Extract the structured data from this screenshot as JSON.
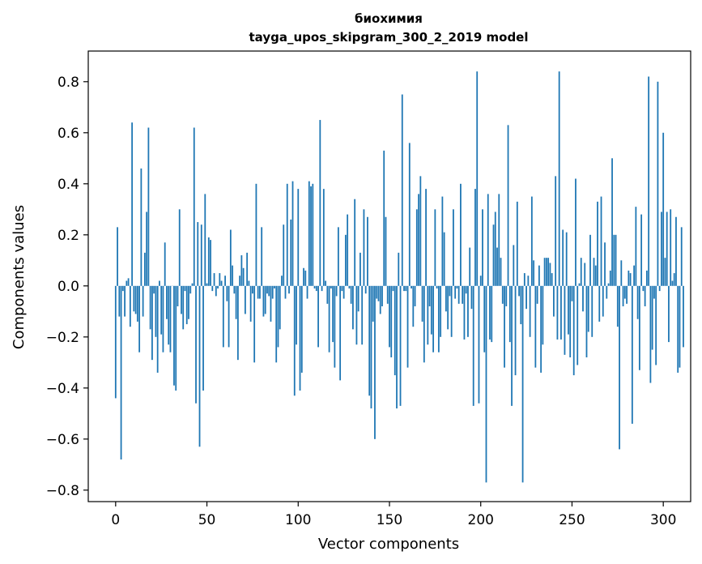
{
  "chart_data": {
    "type": "bar",
    "title": "биохимия",
    "subtitle": "tayga_upos_skipgram_300_2_2019 model",
    "xlabel": "Vector components",
    "ylabel": "Components values",
    "xlim": [
      -15,
      315
    ],
    "ylim": [
      -0.845,
      0.92
    ],
    "xticks": [
      0,
      50,
      100,
      150,
      200,
      250,
      300
    ],
    "xtick_labels": [
      "0",
      "50",
      "100",
      "150",
      "200",
      "250",
      "300"
    ],
    "yticks": [
      -0.8,
      -0.6,
      -0.4,
      -0.2,
      0.0,
      0.2,
      0.4,
      0.6,
      0.8
    ],
    "ytick_labels": [
      "−0.8",
      "−0.6",
      "−0.4",
      "−0.2",
      "0.0",
      "0.2",
      "0.4",
      "0.6",
      "0.8"
    ],
    "bar_color": "#1f77b4",
    "grid": false,
    "values": [
      -0.44,
      0.23,
      -0.12,
      -0.68,
      -0.02,
      -0.12,
      0.02,
      0.03,
      -0.16,
      0.64,
      -0.1,
      -0.11,
      -0.14,
      -0.26,
      0.46,
      -0.12,
      0.13,
      0.29,
      0.62,
      -0.17,
      -0.29,
      -0.03,
      -0.2,
      -0.34,
      0.02,
      -0.19,
      -0.26,
      0.17,
      -0.13,
      -0.23,
      -0.26,
      0.0,
      -0.39,
      -0.41,
      -0.08,
      0.3,
      -0.11,
      -0.17,
      -0.02,
      -0.15,
      -0.13,
      -0.03,
      0.01,
      0.62,
      -0.46,
      0.25,
      -0.63,
      0.24,
      -0.41,
      0.36,
      0.01,
      0.19,
      0.18,
      -0.02,
      0.05,
      -0.04,
      -0.01,
      0.05,
      0.02,
      -0.24,
      0.04,
      -0.06,
      -0.24,
      0.22,
      0.08,
      -0.03,
      -0.13,
      -0.29,
      0.04,
      0.12,
      0.07,
      -0.11,
      0.13,
      0.02,
      -0.14,
      -0.03,
      -0.3,
      0.4,
      -0.05,
      -0.05,
      0.23,
      -0.12,
      -0.11,
      -0.03,
      -0.04,
      -0.14,
      -0.05,
      -0.01,
      -0.3,
      -0.24,
      -0.17,
      0.04,
      0.24,
      -0.05,
      0.4,
      -0.03,
      0.26,
      0.41,
      -0.43,
      -0.23,
      0.38,
      -0.41,
      -0.34,
      0.07,
      0.06,
      -0.05,
      0.41,
      0.39,
      0.4,
      -0.01,
      -0.02,
      -0.24,
      0.65,
      -0.02,
      0.38,
      0.02,
      -0.07,
      -0.26,
      -0.01,
      -0.22,
      -0.32,
      -0.04,
      0.23,
      -0.37,
      -0.02,
      -0.05,
      0.2,
      0.28,
      -0.01,
      -0.07,
      -0.17,
      0.34,
      -0.23,
      -0.1,
      0.13,
      -0.23,
      0.3,
      -0.03,
      0.27,
      -0.43,
      -0.48,
      -0.14,
      -0.6,
      -0.05,
      -0.06,
      -0.11,
      -0.08,
      0.53,
      0.27,
      -0.07,
      -0.24,
      -0.28,
      -0.02,
      -0.35,
      -0.48,
      0.13,
      -0.47,
      0.75,
      -0.02,
      -0.02,
      -0.32,
      0.56,
      -0.01,
      -0.16,
      -0.08,
      0.3,
      0.36,
      0.43,
      -0.14,
      -0.3,
      0.38,
      -0.23,
      -0.08,
      -0.19,
      -0.26,
      0.3,
      -0.01,
      -0.26,
      -0.2,
      0.35,
      0.21,
      -0.1,
      -0.17,
      -0.04,
      -0.2,
      0.3,
      -0.05,
      -0.01,
      -0.07,
      0.4,
      -0.07,
      -0.21,
      -0.03,
      -0.2,
      0.15,
      -0.09,
      -0.47,
      0.38,
      0.84,
      -0.46,
      0.04,
      0.3,
      -0.26,
      -0.77,
      0.36,
      -0.21,
      -0.22,
      0.24,
      0.29,
      0.15,
      0.36,
      0.11,
      -0.07,
      -0.32,
      -0.08,
      0.63,
      -0.22,
      -0.47,
      0.16,
      -0.35,
      0.33,
      -0.04,
      -0.15,
      -0.77,
      0.05,
      -0.09,
      0.04,
      -0.2,
      0.35,
      0.1,
      -0.32,
      -0.07,
      0.08,
      -0.34,
      -0.23,
      0.11,
      0.11,
      0.11,
      0.09,
      0.05,
      -0.12,
      0.43,
      -0.21,
      0.84,
      -0.21,
      0.22,
      -0.27,
      0.21,
      -0.19,
      -0.28,
      -0.06,
      -0.35,
      0.42,
      -0.31,
      0.01,
      0.11,
      -0.1,
      0.09,
      -0.28,
      -0.18,
      0.2,
      -0.2,
      0.11,
      0.08,
      0.33,
      -0.14,
      0.35,
      -0.12,
      0.17,
      -0.05,
      0.01,
      0.06,
      0.5,
      0.2,
      0.2,
      -0.16,
      -0.64,
      0.1,
      -0.08,
      -0.05,
      -0.07,
      0.06,
      0.05,
      -0.54,
      0.08,
      0.31,
      -0.13,
      -0.33,
      0.28,
      -0.02,
      -0.08,
      0.06,
      0.82,
      -0.38,
      -0.25,
      -0.05,
      -0.31,
      0.8,
      -0.02,
      0.29,
      0.6,
      0.11,
      0.29,
      -0.22,
      0.3,
      0.02,
      0.05,
      0.27,
      -0.34,
      -0.32,
      0.23,
      -0.24
    ]
  }
}
